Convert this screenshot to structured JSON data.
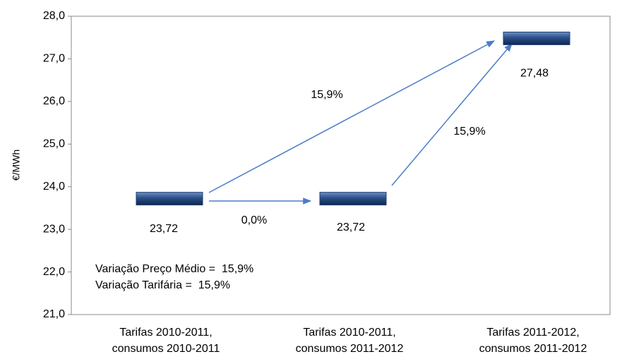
{
  "chart_data": {
    "type": "dash",
    "y_label": "€/MWh",
    "categories": [
      "Tarifas 2010-2011,\nconsumos 2010-2011",
      "Tarifas 2010-2011,\nconsumos 2011-2012",
      "Tarifas 2011-2012,\nconsumos 2011-2012"
    ],
    "values": [
      23.72,
      23.72,
      27.48
    ],
    "value_labels": [
      "23,72",
      "23,72",
      "27,48"
    ],
    "color": "#1f3f73",
    "ylim": [
      21,
      28
    ],
    "yticks": [
      {
        "value": 21,
        "label": "21,0"
      },
      {
        "value": 22,
        "label": "22,0"
      },
      {
        "value": 23,
        "label": "23,0"
      },
      {
        "value": 24,
        "label": "24,0"
      },
      {
        "value": 25,
        "label": "25,0"
      },
      {
        "value": 26,
        "label": "26,0"
      },
      {
        "value": 27,
        "label": "27,0"
      },
      {
        "value": 28,
        "label": "28,0"
      }
    ],
    "grid": false,
    "annotations": [
      "15,9%",
      "0,0%",
      "15,9%",
      "Variação Preço Médio =  15,9%",
      "Variação Tarifária =  15,9%"
    ]
  }
}
